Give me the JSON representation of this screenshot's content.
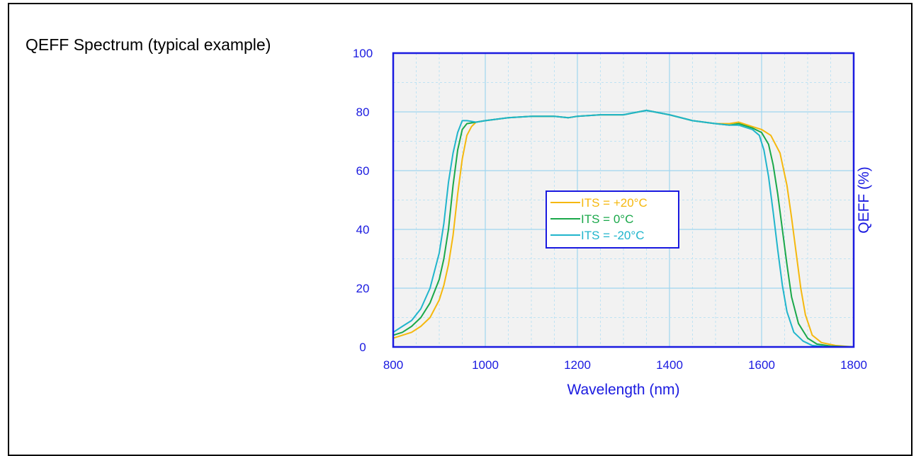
{
  "section_title": "QEFF Spectrum (typical example)",
  "colors": {
    "axis": "#1a1ae0",
    "plot_bg": "#f2f2f2",
    "grid_major": "#9ed6f0",
    "grid_minor": "#bfe3f3"
  },
  "chart_data": {
    "type": "line",
    "title": "",
    "xlabel": "Wavelength (nm)",
    "ylabel": "QEFF (%)",
    "xlim": [
      800,
      1800
    ],
    "ylim": [
      0,
      100
    ],
    "xticks": [
      800,
      1000,
      1200,
      1400,
      1600,
      1800
    ],
    "yticks": [
      0,
      20,
      40,
      60,
      80,
      100
    ],
    "grid": true,
    "legend_position": "center-left",
    "series": [
      {
        "name": "ITS = +20°C",
        "color": "#f5b80e",
        "points": [
          [
            800,
            3
          ],
          [
            820,
            4
          ],
          [
            840,
            5
          ],
          [
            860,
            7
          ],
          [
            880,
            10
          ],
          [
            900,
            16
          ],
          [
            910,
            21
          ],
          [
            920,
            28
          ],
          [
            930,
            38
          ],
          [
            940,
            52
          ],
          [
            950,
            64
          ],
          [
            960,
            72
          ],
          [
            970,
            75
          ],
          [
            980,
            76.5
          ],
          [
            1000,
            77
          ],
          [
            1050,
            78
          ],
          [
            1100,
            78.5
          ],
          [
            1150,
            78.5
          ],
          [
            1180,
            78
          ],
          [
            1200,
            78.5
          ],
          [
            1250,
            79
          ],
          [
            1300,
            79
          ],
          [
            1350,
            80.5
          ],
          [
            1400,
            79
          ],
          [
            1450,
            77
          ],
          [
            1500,
            76
          ],
          [
            1530,
            76
          ],
          [
            1550,
            76.5
          ],
          [
            1580,
            75
          ],
          [
            1600,
            74
          ],
          [
            1620,
            72
          ],
          [
            1640,
            66
          ],
          [
            1655,
            55
          ],
          [
            1665,
            44
          ],
          [
            1675,
            32
          ],
          [
            1685,
            20
          ],
          [
            1695,
            11
          ],
          [
            1710,
            4
          ],
          [
            1730,
            1.5
          ],
          [
            1760,
            0.5
          ],
          [
            1800,
            0
          ]
        ]
      },
      {
        "name": "ITS = 0°C",
        "color": "#1aa84a",
        "points": [
          [
            800,
            4
          ],
          [
            820,
            5
          ],
          [
            840,
            7
          ],
          [
            860,
            10
          ],
          [
            880,
            15
          ],
          [
            900,
            23
          ],
          [
            910,
            30
          ],
          [
            920,
            40
          ],
          [
            930,
            55
          ],
          [
            940,
            67
          ],
          [
            950,
            74
          ],
          [
            960,
            76
          ],
          [
            980,
            76.5
          ],
          [
            1000,
            77
          ],
          [
            1050,
            78
          ],
          [
            1100,
            78.5
          ],
          [
            1150,
            78.5
          ],
          [
            1180,
            78
          ],
          [
            1200,
            78.5
          ],
          [
            1250,
            79
          ],
          [
            1300,
            79
          ],
          [
            1350,
            80.5
          ],
          [
            1400,
            79
          ],
          [
            1450,
            77
          ],
          [
            1500,
            76
          ],
          [
            1530,
            75.5
          ],
          [
            1550,
            76
          ],
          [
            1580,
            74.5
          ],
          [
            1600,
            73
          ],
          [
            1615,
            69
          ],
          [
            1625,
            62
          ],
          [
            1635,
            52
          ],
          [
            1645,
            40
          ],
          [
            1655,
            28
          ],
          [
            1665,
            17
          ],
          [
            1680,
            8
          ],
          [
            1700,
            3
          ],
          [
            1720,
            1
          ],
          [
            1750,
            0.3
          ],
          [
            1800,
            0
          ]
        ]
      },
      {
        "name": "ITS = -20°C",
        "color": "#20b5cc",
        "points": [
          [
            800,
            5
          ],
          [
            820,
            7
          ],
          [
            840,
            9
          ],
          [
            860,
            13
          ],
          [
            880,
            20
          ],
          [
            900,
            32
          ],
          [
            910,
            42
          ],
          [
            920,
            56
          ],
          [
            930,
            66
          ],
          [
            940,
            73
          ],
          [
            950,
            77
          ],
          [
            960,
            77
          ],
          [
            980,
            76.5
          ],
          [
            1000,
            77
          ],
          [
            1050,
            78
          ],
          [
            1100,
            78.5
          ],
          [
            1150,
            78.5
          ],
          [
            1180,
            78
          ],
          [
            1200,
            78.5
          ],
          [
            1250,
            79
          ],
          [
            1300,
            79
          ],
          [
            1350,
            80.5
          ],
          [
            1400,
            79
          ],
          [
            1450,
            77
          ],
          [
            1500,
            76
          ],
          [
            1530,
            75.5
          ],
          [
            1550,
            75.5
          ],
          [
            1580,
            74
          ],
          [
            1595,
            72
          ],
          [
            1605,
            67
          ],
          [
            1615,
            58
          ],
          [
            1625,
            46
          ],
          [
            1635,
            33
          ],
          [
            1645,
            21
          ],
          [
            1655,
            12
          ],
          [
            1670,
            5
          ],
          [
            1690,
            2
          ],
          [
            1710,
            0.5
          ],
          [
            1740,
            0.1
          ],
          [
            1800,
            0
          ]
        ]
      }
    ]
  }
}
